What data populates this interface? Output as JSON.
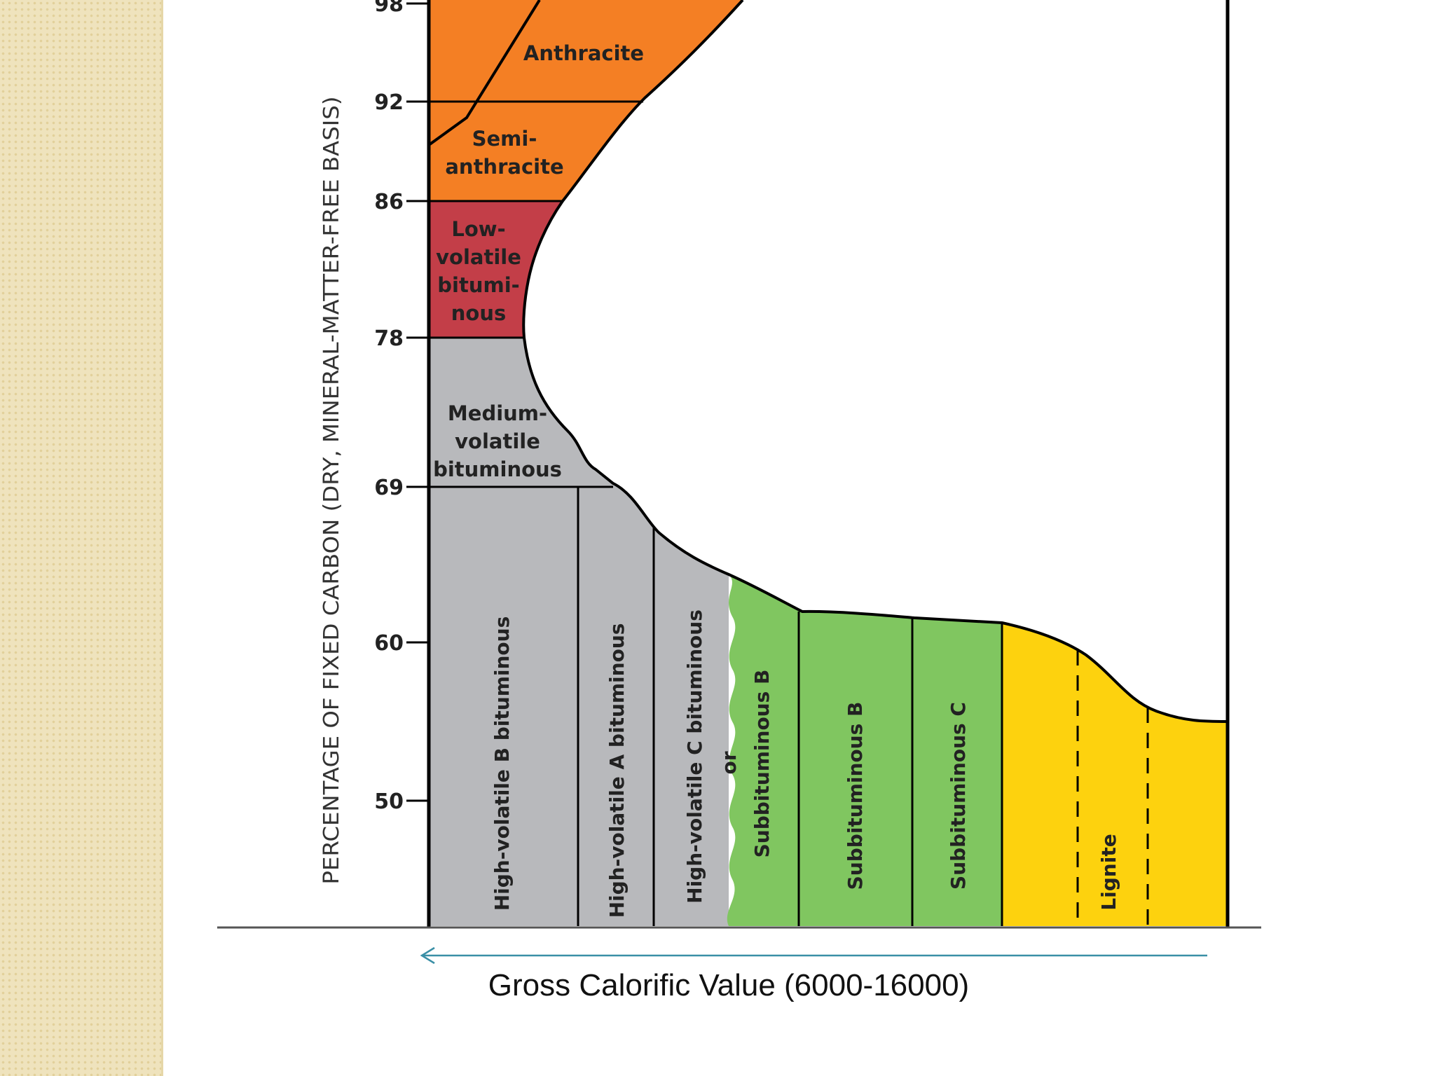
{
  "diagram": {
    "y_axis_label": "PERCENTAGE OF FIXED CARBON (DRY, MINERAL-MATTER-FREE BASIS)",
    "y_ticks": [
      "98",
      "92",
      "86",
      "78",
      "69",
      "60",
      "50"
    ],
    "x_axis_caption": "Gross Calorific Value (6000-16000)",
    "regions": {
      "anthracite": {
        "lines": [
          "Anthracite"
        ],
        "color": "#f47f24"
      },
      "semi_anthracite": {
        "lines": [
          "Semi-",
          "anthracite"
        ],
        "color": "#f47f24"
      },
      "low_volatile": {
        "lines": [
          "Low-",
          "volatile",
          "bitumi-",
          "nous"
        ],
        "color": "#c33e48"
      },
      "medium_volatile": {
        "lines": [
          "Medium-",
          "volatile",
          "bituminous"
        ],
        "color": "#b8b9bc"
      },
      "hvb": {
        "label": "High-volatile B bituminous",
        "color": "#b8b9bc"
      },
      "hva": {
        "label": "High-volatile A bituminous",
        "color": "#b8b9bc"
      },
      "hvc": {
        "label": "High-volatile C bituminous",
        "color": "#b8b9bc"
      },
      "or_word": "or",
      "sub_b_alt": {
        "label": "Subbituminous B",
        "color": "#80c660"
      },
      "sub_b": {
        "label": "Subbituminous B",
        "color": "#80c660"
      },
      "sub_c": {
        "label": "Subbituminous C",
        "color": "#80c660"
      },
      "lignite": {
        "label": "Lignite",
        "color": "#fdd20e"
      }
    },
    "arrow_color": "#3a8fa6"
  }
}
